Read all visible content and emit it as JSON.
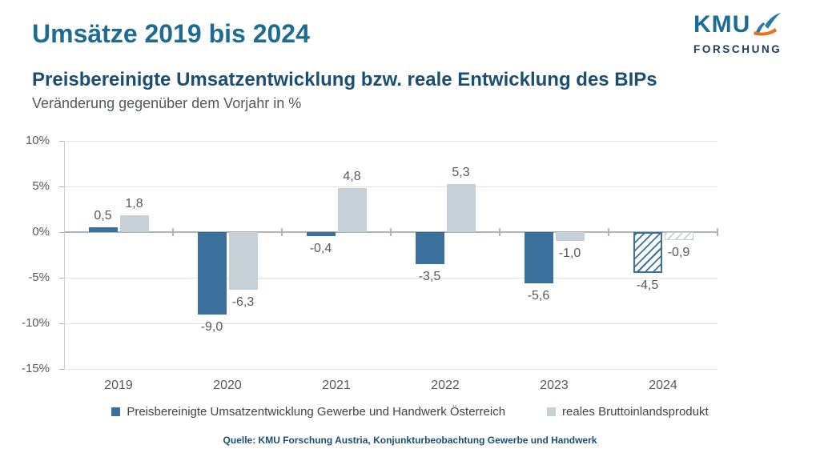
{
  "header": {
    "title": "Umsätze 2019 bis 2024",
    "subtitle": "Preisbereinigte Umsatzentwicklung bzw. reale Entwicklung des BIPs",
    "unit_line": "Veränderung gegenüber dem Vorjahr in %"
  },
  "logo": {
    "top": "KMU",
    "bottom": "FORSCHUNG",
    "swoosh_blue": "#2779A7",
    "swoosh_orange": "#E8731E"
  },
  "chart_data": {
    "type": "bar",
    "title": "Preisbereinigte Umsatzentwicklung bzw. reale Entwicklung des BIPs",
    "subtitle": "Veränderung gegenüber dem Vorjahr in %",
    "categories": [
      "2019",
      "2020",
      "2021",
      "2022",
      "2023",
      "2024"
    ],
    "series": [
      {
        "name": "Preisbereinigte Umsatzentwicklung Gewerbe und Handwerk Österreich",
        "color": "#3A719C",
        "values": [
          0.5,
          -9.0,
          -0.4,
          -3.5,
          -5.6,
          -4.5
        ],
        "labels": [
          "0,5",
          "-9,0",
          "-0,4",
          "-3,5",
          "-5,6",
          "-4,5"
        ]
      },
      {
        "name": "reales Bruttoinlandsprodukt",
        "color": "#C6D0D7",
        "values": [
          1.8,
          -6.3,
          4.8,
          5.3,
          -1.0,
          -0.9
        ],
        "labels": [
          "1,8",
          "-6,3",
          "4,8",
          "5,3",
          "-1,0",
          "-0,9"
        ]
      }
    ],
    "hatched_categories": [
      "2024"
    ],
    "y_axis": {
      "min": -15,
      "max": 10,
      "tick_values": [
        10,
        5,
        0,
        -5,
        -10,
        -15
      ],
      "tick_labels": [
        "10%",
        "5%",
        "0%",
        "-5%",
        "-10%",
        "-15%"
      ],
      "grid": true
    },
    "legend_position": "bottom"
  },
  "footer": {
    "source": "Quelle: KMU Forschung Austria, Konjunkturbeobachtung Gewerbe und Handwerk"
  },
  "colors": {
    "title": "#1E6B93",
    "subtitle": "#1C4E74",
    "muted_text": "#54585C",
    "axis_text": "#595959",
    "gridline": "#E4E4E6",
    "zero_line": "#AEB3B6",
    "background": "#FFFFFF"
  }
}
